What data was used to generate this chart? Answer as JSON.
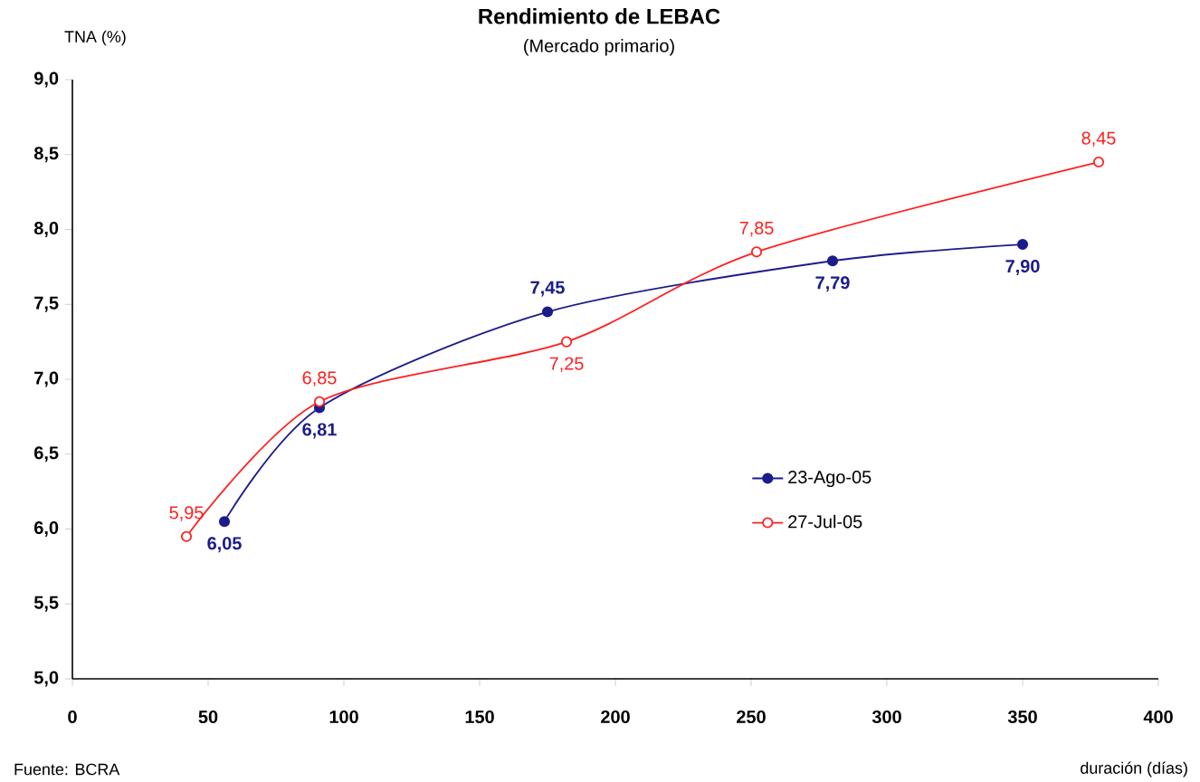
{
  "chart_data": {
    "type": "line",
    "title": "Rendimiento de LEBAC",
    "subtitle": "(Mercado primario)",
    "xlabel": "duración (días)",
    "ylabel": "TNA (%)",
    "annotations": [
      "Fuente: BCRA"
    ],
    "xlim": [
      0,
      400
    ],
    "xticks": [
      0,
      50,
      100,
      150,
      200,
      250,
      300,
      350,
      400
    ],
    "ylim": [
      5.0,
      9.0
    ],
    "yticks": [
      {
        "value": 5.0,
        "label": "5,0"
      },
      {
        "value": 5.5,
        "label": "5,5"
      },
      {
        "value": 6.0,
        "label": "6,0"
      },
      {
        "value": 6.5,
        "label": "6,5"
      },
      {
        "value": 7.0,
        "label": "7,0"
      },
      {
        "value": 7.5,
        "label": "7,5"
      },
      {
        "value": 8.0,
        "label": "8,0"
      },
      {
        "value": 8.5,
        "label": "8,5"
      },
      {
        "value": 9.0,
        "label": "9,0"
      }
    ],
    "grid": false,
    "legend": "center right",
    "marker": "circle",
    "line_style": "solid",
    "series": [
      {
        "name": "23-Ago-05",
        "color": "#1c1c8c",
        "x": [
          56,
          91,
          175,
          280,
          350
        ],
        "values": [
          6.05,
          6.81,
          7.45,
          7.79,
          7.9
        ],
        "value_labels": [
          "6,05",
          "6,81",
          "7,45",
          "7,79",
          "7,90"
        ]
      },
      {
        "name": "27-Jul-05",
        "color": "#ff2020",
        "x": [
          42,
          91,
          182,
          252,
          378
        ],
        "values": [
          5.95,
          6.85,
          7.25,
          7.85,
          8.45
        ],
        "value_labels": [
          "5,95",
          "6,85",
          "7,25",
          "7,85",
          "8,45"
        ]
      }
    ]
  }
}
